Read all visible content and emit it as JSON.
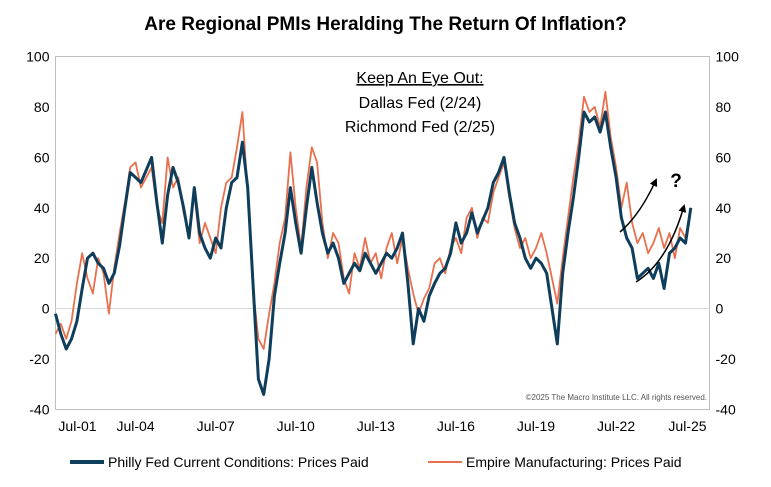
{
  "chart_data": {
    "type": "line",
    "title": "Are Regional PMIs Heralding The Return Of Inflation?",
    "x_ticks": [
      "Jul-01",
      "Jul-04",
      "Jul-07",
      "Jul-10",
      "Jul-13",
      "Jul-16",
      "Jul-19",
      "Jul-22",
      "Jul-25"
    ],
    "x_range": [
      2001.5,
      2026.0
    ],
    "ylim": [
      -40,
      100
    ],
    "y_ticks": [
      "-40",
      "-20",
      "0",
      "20",
      "40",
      "60",
      "80",
      "100"
    ],
    "y_ticks_right": [
      "-40",
      "-20",
      "0",
      "20",
      "40",
      "60",
      "80",
      "100"
    ],
    "grid": false,
    "legend_position": "bottom",
    "annotation": {
      "heading": "Keep An Eye Out:",
      "line1": "Dallas Fed (2/24)",
      "line2": "Richmond Fed (2/25)"
    },
    "question_mark": "?",
    "credit": "©2025 The Macro Institute LLC. All rights reserved.",
    "series": [
      {
        "name": "Philly Fed Current Conditions: Prices Paid",
        "color": "#0e3e5b",
        "points": [
          [
            2001.5,
            -2
          ],
          [
            2001.7,
            -10
          ],
          [
            2001.9,
            -16
          ],
          [
            2002.1,
            -12
          ],
          [
            2002.3,
            -5
          ],
          [
            2002.5,
            8
          ],
          [
            2002.7,
            20
          ],
          [
            2002.9,
            22
          ],
          [
            2003.1,
            18
          ],
          [
            2003.3,
            16
          ],
          [
            2003.5,
            10
          ],
          [
            2003.7,
            14
          ],
          [
            2003.9,
            25
          ],
          [
            2004.1,
            40
          ],
          [
            2004.3,
            54
          ],
          [
            2004.5,
            52
          ],
          [
            2004.7,
            50
          ],
          [
            2004.9,
            55
          ],
          [
            2005.1,
            60
          ],
          [
            2005.3,
            42
          ],
          [
            2005.5,
            26
          ],
          [
            2005.7,
            45
          ],
          [
            2005.9,
            56
          ],
          [
            2006.1,
            50
          ],
          [
            2006.3,
            40
          ],
          [
            2006.5,
            28
          ],
          [
            2006.7,
            48
          ],
          [
            2006.9,
            30
          ],
          [
            2007.1,
            24
          ],
          [
            2007.3,
            20
          ],
          [
            2007.5,
            28
          ],
          [
            2007.7,
            24
          ],
          [
            2007.9,
            40
          ],
          [
            2008.1,
            50
          ],
          [
            2008.3,
            52
          ],
          [
            2008.5,
            66
          ],
          [
            2008.7,
            48
          ],
          [
            2008.9,
            10
          ],
          [
            2009.1,
            -28
          ],
          [
            2009.3,
            -34
          ],
          [
            2009.5,
            -20
          ],
          [
            2009.7,
            5
          ],
          [
            2009.9,
            18
          ],
          [
            2010.1,
            30
          ],
          [
            2010.3,
            48
          ],
          [
            2010.5,
            34
          ],
          [
            2010.7,
            22
          ],
          [
            2010.9,
            40
          ],
          [
            2011.1,
            56
          ],
          [
            2011.3,
            42
          ],
          [
            2011.5,
            30
          ],
          [
            2011.7,
            22
          ],
          [
            2011.9,
            26
          ],
          [
            2012.1,
            20
          ],
          [
            2012.3,
            10
          ],
          [
            2012.5,
            14
          ],
          [
            2012.7,
            18
          ],
          [
            2012.9,
            15
          ],
          [
            2013.1,
            22
          ],
          [
            2013.3,
            18
          ],
          [
            2013.5,
            14
          ],
          [
            2013.7,
            18
          ],
          [
            2013.9,
            22
          ],
          [
            2014.1,
            20
          ],
          [
            2014.3,
            24
          ],
          [
            2014.5,
            30
          ],
          [
            2014.7,
            10
          ],
          [
            2014.9,
            -14
          ],
          [
            2015.1,
            0
          ],
          [
            2015.3,
            -5
          ],
          [
            2015.5,
            5
          ],
          [
            2015.7,
            10
          ],
          [
            2015.9,
            14
          ],
          [
            2016.1,
            16
          ],
          [
            2016.3,
            22
          ],
          [
            2016.5,
            34
          ],
          [
            2016.7,
            26
          ],
          [
            2016.9,
            30
          ],
          [
            2017.1,
            38
          ],
          [
            2017.3,
            30
          ],
          [
            2017.5,
            35
          ],
          [
            2017.7,
            40
          ],
          [
            2017.9,
            50
          ],
          [
            2018.1,
            54
          ],
          [
            2018.3,
            60
          ],
          [
            2018.5,
            46
          ],
          [
            2018.7,
            34
          ],
          [
            2018.9,
            28
          ],
          [
            2019.1,
            20
          ],
          [
            2019.3,
            16
          ],
          [
            2019.5,
            20
          ],
          [
            2019.7,
            18
          ],
          [
            2019.9,
            14
          ],
          [
            2020.1,
            0
          ],
          [
            2020.3,
            -14
          ],
          [
            2020.5,
            14
          ],
          [
            2020.7,
            30
          ],
          [
            2020.9,
            44
          ],
          [
            2021.1,
            60
          ],
          [
            2021.3,
            78
          ],
          [
            2021.5,
            74
          ],
          [
            2021.7,
            76
          ],
          [
            2021.9,
            70
          ],
          [
            2022.1,
            78
          ],
          [
            2022.3,
            64
          ],
          [
            2022.5,
            52
          ],
          [
            2022.7,
            36
          ],
          [
            2022.9,
            28
          ],
          [
            2023.1,
            24
          ],
          [
            2023.3,
            12
          ],
          [
            2023.5,
            14
          ],
          [
            2023.7,
            16
          ],
          [
            2023.9,
            12
          ],
          [
            2024.1,
            18
          ],
          [
            2024.3,
            8
          ],
          [
            2024.5,
            22
          ],
          [
            2024.7,
            24
          ],
          [
            2024.9,
            28
          ],
          [
            2025.1,
            26
          ],
          [
            2025.3,
            40
          ]
        ]
      },
      {
        "name": "Empire Manufacturing: Prices Paid",
        "color": "#e8704d",
        "points": [
          [
            2001.5,
            -10
          ],
          [
            2001.7,
            -6
          ],
          [
            2001.9,
            -12
          ],
          [
            2002.1,
            -5
          ],
          [
            2002.3,
            10
          ],
          [
            2002.5,
            22
          ],
          [
            2002.7,
            12
          ],
          [
            2002.9,
            6
          ],
          [
            2003.1,
            20
          ],
          [
            2003.3,
            14
          ],
          [
            2003.5,
            -2
          ],
          [
            2003.7,
            16
          ],
          [
            2003.9,
            30
          ],
          [
            2004.1,
            42
          ],
          [
            2004.3,
            56
          ],
          [
            2004.5,
            58
          ],
          [
            2004.7,
            48
          ],
          [
            2004.9,
            52
          ],
          [
            2005.1,
            56
          ],
          [
            2005.3,
            40
          ],
          [
            2005.5,
            34
          ],
          [
            2005.7,
            60
          ],
          [
            2005.9,
            48
          ],
          [
            2006.1,
            52
          ],
          [
            2006.3,
            38
          ],
          [
            2006.5,
            30
          ],
          [
            2006.7,
            46
          ],
          [
            2006.9,
            26
          ],
          [
            2007.1,
            34
          ],
          [
            2007.3,
            28
          ],
          [
            2007.5,
            22
          ],
          [
            2007.7,
            40
          ],
          [
            2007.9,
            50
          ],
          [
            2008.1,
            52
          ],
          [
            2008.3,
            64
          ],
          [
            2008.5,
            78
          ],
          [
            2008.7,
            46
          ],
          [
            2008.9,
            8
          ],
          [
            2009.1,
            -12
          ],
          [
            2009.3,
            -16
          ],
          [
            2009.5,
            -2
          ],
          [
            2009.7,
            10
          ],
          [
            2009.9,
            26
          ],
          [
            2010.1,
            36
          ],
          [
            2010.3,
            62
          ],
          [
            2010.5,
            40
          ],
          [
            2010.7,
            24
          ],
          [
            2010.9,
            48
          ],
          [
            2011.1,
            64
          ],
          [
            2011.3,
            58
          ],
          [
            2011.5,
            34
          ],
          [
            2011.7,
            20
          ],
          [
            2011.9,
            30
          ],
          [
            2012.1,
            26
          ],
          [
            2012.3,
            12
          ],
          [
            2012.5,
            6
          ],
          [
            2012.7,
            22
          ],
          [
            2012.9,
            16
          ],
          [
            2013.1,
            28
          ],
          [
            2013.3,
            18
          ],
          [
            2013.5,
            22
          ],
          [
            2013.7,
            12
          ],
          [
            2013.9,
            24
          ],
          [
            2014.1,
            30
          ],
          [
            2014.3,
            18
          ],
          [
            2014.5,
            28
          ],
          [
            2014.7,
            16
          ],
          [
            2014.9,
            6
          ],
          [
            2015.1,
            -2
          ],
          [
            2015.3,
            4
          ],
          [
            2015.5,
            8
          ],
          [
            2015.7,
            18
          ],
          [
            2015.9,
            20
          ],
          [
            2016.1,
            14
          ],
          [
            2016.3,
            24
          ],
          [
            2016.5,
            28
          ],
          [
            2016.7,
            22
          ],
          [
            2016.9,
            36
          ],
          [
            2017.1,
            40
          ],
          [
            2017.3,
            28
          ],
          [
            2017.5,
            36
          ],
          [
            2017.7,
            34
          ],
          [
            2017.9,
            46
          ],
          [
            2018.1,
            52
          ],
          [
            2018.3,
            58
          ],
          [
            2018.5,
            44
          ],
          [
            2018.7,
            32
          ],
          [
            2018.9,
            24
          ],
          [
            2019.1,
            28
          ],
          [
            2019.3,
            20
          ],
          [
            2019.5,
            24
          ],
          [
            2019.7,
            30
          ],
          [
            2019.9,
            22
          ],
          [
            2020.1,
            12
          ],
          [
            2020.3,
            2
          ],
          [
            2020.5,
            20
          ],
          [
            2020.7,
            36
          ],
          [
            2020.9,
            52
          ],
          [
            2021.1,
            66
          ],
          [
            2021.3,
            84
          ],
          [
            2021.5,
            78
          ],
          [
            2021.7,
            80
          ],
          [
            2021.9,
            72
          ],
          [
            2022.1,
            86
          ],
          [
            2022.3,
            68
          ],
          [
            2022.5,
            56
          ],
          [
            2022.7,
            40
          ],
          [
            2022.9,
            50
          ],
          [
            2023.1,
            34
          ],
          [
            2023.3,
            26
          ],
          [
            2023.5,
            30
          ],
          [
            2023.7,
            22
          ],
          [
            2023.9,
            26
          ],
          [
            2024.1,
            32
          ],
          [
            2024.3,
            24
          ],
          [
            2024.5,
            30
          ],
          [
            2024.7,
            20
          ],
          [
            2024.9,
            32
          ],
          [
            2025.1,
            28
          ],
          [
            2025.3,
            40
          ]
        ]
      }
    ]
  }
}
